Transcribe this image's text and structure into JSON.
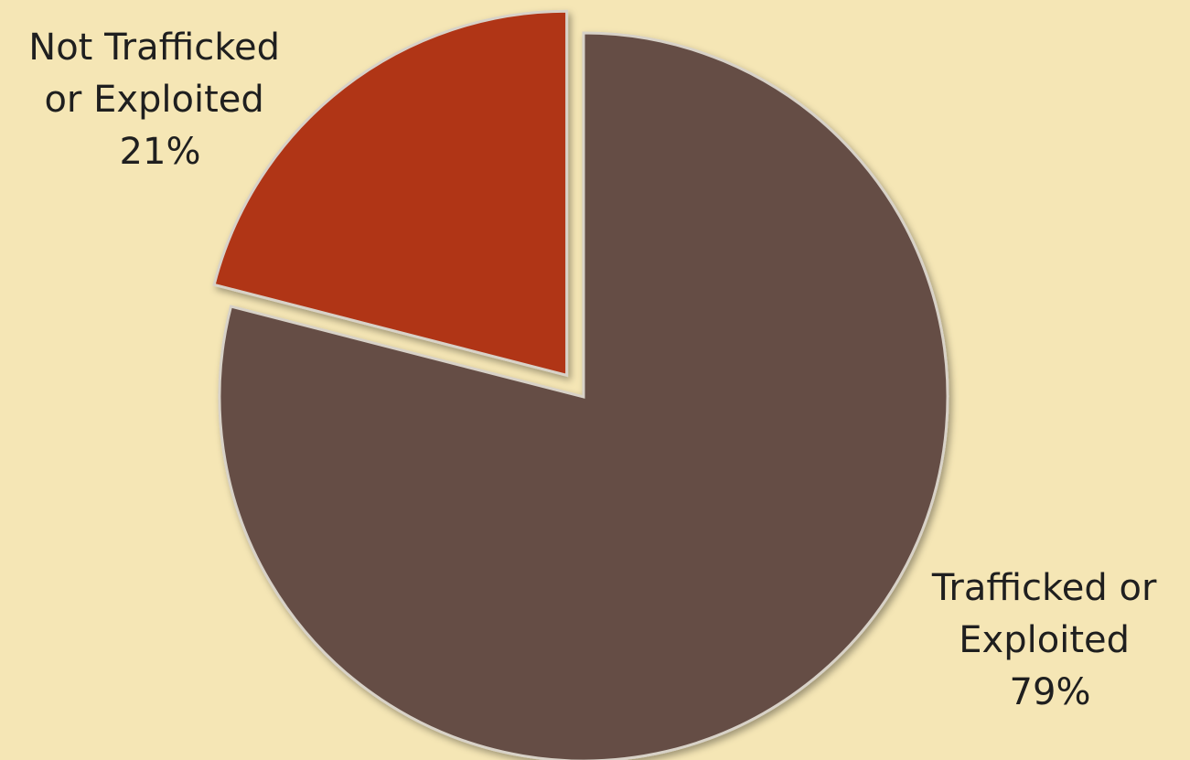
{
  "chart_data": {
    "type": "pie",
    "title": "",
    "slices": [
      {
        "label_lines": [
          "Not Trafficked",
          "or Exploited"
        ],
        "pct_label": "21%",
        "value": 21,
        "color": "#b03515",
        "exploded": true
      },
      {
        "label_lines": [
          "Trafficked or",
          "Exploited"
        ],
        "pct_label": "79%",
        "value": 79,
        "color": "#654d44",
        "exploded": false
      }
    ],
    "background": "#f5e6b5",
    "legend": "none"
  }
}
